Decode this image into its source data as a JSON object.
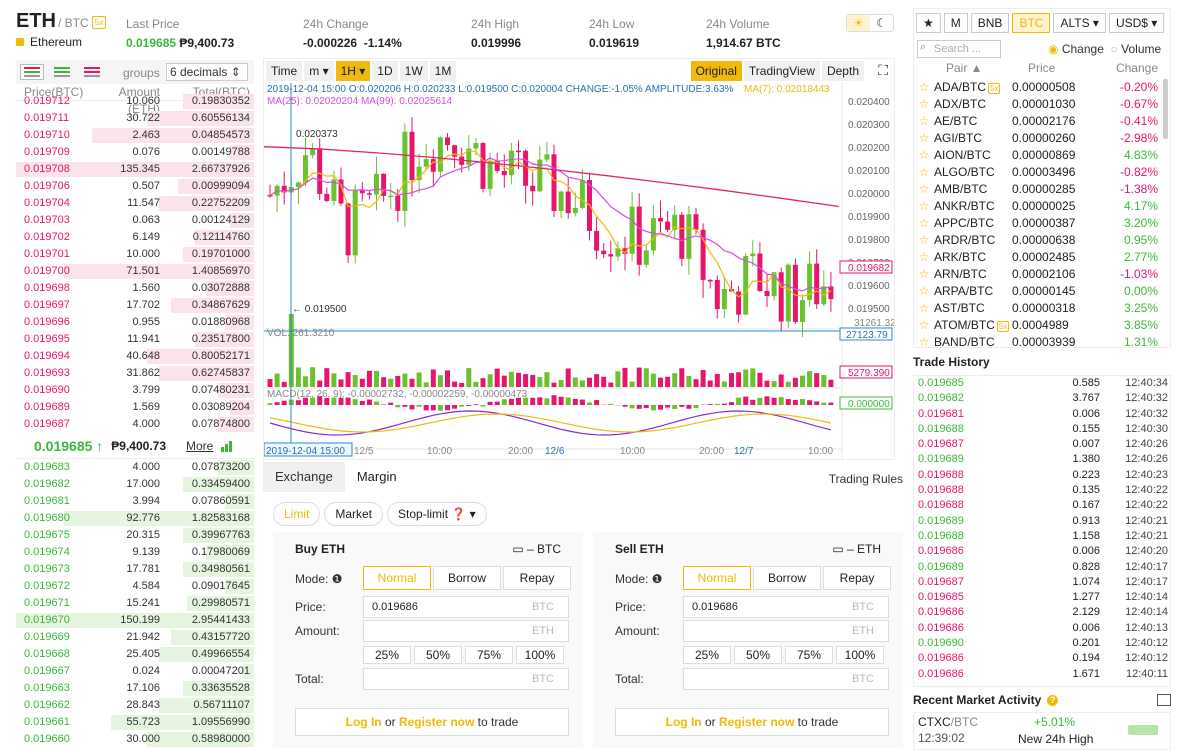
{
  "header": {
    "symbol": "ETH",
    "quote": "/ BTC",
    "leverage": "5x",
    "coin_name": "Ethereum",
    "last_price_label": "Last Price",
    "last_price": "0.019685",
    "last_price_fiat": "₱9,400.73",
    "change_label": "24h Change",
    "change_value": "-0.000226",
    "change_pct": "-1.14%",
    "high_label": "24h High",
    "high_value": "0.019996",
    "low_label": "24h Low",
    "low_value": "0.019619",
    "volume_label": "24h Volume",
    "volume_value": "1,914.67 BTC",
    "theme_light": "☀",
    "theme_dark": "☾"
  },
  "orderbook": {
    "groups_label": "groups",
    "decimals": "6 decimals ⇕",
    "col_price": "Price(BTC)",
    "col_amount": "Amount (ETH)",
    "col_total": "Total(BTC)",
    "asks": [
      {
        "p": "0.019712",
        "a": "10.060",
        "t": "0.19830352",
        "d": 0.3
      },
      {
        "p": "0.019711",
        "a": "30.722",
        "t": "0.60556134",
        "d": 0.45
      },
      {
        "p": "0.019710",
        "a": "2.463",
        "t": "0.04854573",
        "d": 0.68
      },
      {
        "p": "0.019709",
        "a": "0.076",
        "t": "0.00149788",
        "d": 0.1
      },
      {
        "p": "0.019708",
        "a": "135.345",
        "t": "2.66737926",
        "d": 1.0
      },
      {
        "p": "0.019706",
        "a": "0.507",
        "t": "0.00999094",
        "d": 0.32
      },
      {
        "p": "0.019704",
        "a": "11.547",
        "t": "0.22752209",
        "d": 0.4
      },
      {
        "p": "0.019703",
        "a": "0.063",
        "t": "0.00124129",
        "d": 0.1
      },
      {
        "p": "0.019702",
        "a": "6.149",
        "t": "0.12114760",
        "d": 0.25
      },
      {
        "p": "0.019701",
        "a": "10.000",
        "t": "0.19701000",
        "d": 0.3
      },
      {
        "p": "0.019700",
        "a": "71.501",
        "t": "1.40856970",
        "d": 0.8
      },
      {
        "p": "0.019698",
        "a": "1.560",
        "t": "0.03072888",
        "d": 0.2
      },
      {
        "p": "0.019697",
        "a": "17.702",
        "t": "0.34867629",
        "d": 0.35
      },
      {
        "p": "0.019696",
        "a": "0.955",
        "t": "0.01880968",
        "d": 0.12
      },
      {
        "p": "0.019695",
        "a": "11.941",
        "t": "0.23517800",
        "d": 0.25
      },
      {
        "p": "0.019694",
        "a": "40.648",
        "t": "0.80052171",
        "d": 0.45
      },
      {
        "p": "0.019693",
        "a": "31.862",
        "t": "0.62745837",
        "d": 0.4
      },
      {
        "p": "0.019690",
        "a": "3.799",
        "t": "0.07480231",
        "d": 0.15
      },
      {
        "p": "0.019689",
        "a": "1.569",
        "t": "0.03089204",
        "d": 0.1
      },
      {
        "p": "0.019687",
        "a": "4.000",
        "t": "0.07874800",
        "d": 0.15
      }
    ],
    "mid_price": "0.019685 ↑",
    "mid_fiat": "₱9,400.73",
    "more": "More",
    "bids": [
      {
        "p": "0.019683",
        "a": "4.000",
        "t": "0.07873200",
        "d": 0.15
      },
      {
        "p": "0.019682",
        "a": "17.000",
        "t": "0.33459400",
        "d": 0.3
      },
      {
        "p": "0.019681",
        "a": "3.994",
        "t": "0.07860591",
        "d": 0.12
      },
      {
        "p": "0.019680",
        "a": "92.776",
        "t": "1.82583168",
        "d": 0.8
      },
      {
        "p": "0.019675",
        "a": "20.315",
        "t": "0.39967763",
        "d": 0.3
      },
      {
        "p": "0.019674",
        "a": "9.139",
        "t": "0.17980069",
        "d": 0.2
      },
      {
        "p": "0.019673",
        "a": "17.781",
        "t": "0.34980561",
        "d": 0.3
      },
      {
        "p": "0.019672",
        "a": "4.584",
        "t": "0.09017645",
        "d": 0.12
      },
      {
        "p": "0.019671",
        "a": "15.241",
        "t": "0.29980571",
        "d": 0.28
      },
      {
        "p": "0.019670",
        "a": "150.199",
        "t": "2.95441433",
        "d": 1.0
      },
      {
        "p": "0.019669",
        "a": "21.942",
        "t": "0.43157720",
        "d": 0.35
      },
      {
        "p": "0.019668",
        "a": "25.405",
        "t": "0.49966554",
        "d": 0.4
      },
      {
        "p": "0.019667",
        "a": "0.024",
        "t": "0.00047201",
        "d": 0.05
      },
      {
        "p": "0.019663",
        "a": "17.106",
        "t": "0.33635528",
        "d": 0.3
      },
      {
        "p": "0.019662",
        "a": "28.843",
        "t": "0.56711107",
        "d": 0.4
      },
      {
        "p": "0.019661",
        "a": "55.723",
        "t": "1.09556990",
        "d": 0.6
      },
      {
        "p": "0.019660",
        "a": "30.000",
        "t": "0.58980000",
        "d": 0.45
      }
    ]
  },
  "chart": {
    "tools": [
      "Time",
      "m ▾",
      "1H ▾",
      "1D",
      "1W",
      "1M"
    ],
    "views": [
      "Original",
      "TradingView",
      "Depth"
    ],
    "fullscreen": "⛶",
    "ohlc": "2019-12-04 15:00  O:0.020206 H:0.020233 L:0.019500 C:0.020004 CHANGE:-1.05% AMPLITUDE:3.63%",
    "ma7": "MA(7): 0.02018443",
    "ma25": "MA(25): 0.02020204",
    "ma99": "MA(99): 0.02025614",
    "hi_mark": "0.020373",
    "lo_mark": "← 0.019500",
    "price_ticks": [
      "0.020400",
      "0.020300",
      "0.020200",
      "0.020100",
      "0.020000",
      "0.019900",
      "0.019800",
      "0.019700",
      "0.019600",
      "0.019500"
    ],
    "current_price": "0.019682",
    "vol_label": "VOL: 261.3210",
    "vol_top": "31261.32",
    "vol_tag": "27123.79",
    "vol_tag2": "5279.390",
    "macd_label": "MACD(12, 26, 9): -0.00002732, -0.00002259, -0.00000473",
    "macd_zero": "0.000000",
    "time_labels": [
      "2019-12-04 15:00",
      "12/5",
      "10:00",
      "20:00",
      "12/6",
      "10:00",
      "20:00",
      "12/7",
      "10:00"
    ]
  },
  "form": {
    "tabs": [
      "Exchange",
      "Margin"
    ],
    "trading_rules": "Trading Rules",
    "order_types": [
      "Limit",
      "Market",
      "Stop-limit"
    ],
    "buy": {
      "title": "Buy ETH",
      "wallet": "– BTC",
      "mode_label": "Mode:",
      "modes": [
        "Normal",
        "Borrow",
        "Repay"
      ],
      "price_label": "Price:",
      "price": "0.019686",
      "price_unit": "BTC",
      "amount_label": "Amount:",
      "amount_unit": "ETH",
      "pcts": [
        "25%",
        "50%",
        "75%",
        "100%"
      ],
      "total_label": "Total:",
      "total_unit": "BTC",
      "login": "Log In",
      "or": " or ",
      "register": "Register now",
      "to_trade": " to trade"
    },
    "sell": {
      "title": "Sell ETH",
      "wallet": "– ETH",
      "mode_label": "Mode:",
      "modes": [
        "Normal",
        "Borrow",
        "Repay"
      ],
      "price_label": "Price:",
      "price": "0.019686",
      "price_unit": "BTC",
      "amount_label": "Amount:",
      "amount_unit": "ETH",
      "pcts": [
        "25%",
        "50%",
        "75%",
        "100%"
      ],
      "total_label": "Total:",
      "total_unit": "BTC",
      "login": "Log In",
      "or": " or ",
      "register": "Register now",
      "to_trade": " to trade"
    }
  },
  "market": {
    "tabs": [
      "★",
      "M",
      "BNB",
      "BTC",
      "ALTS ▾",
      "USD$ ▾"
    ],
    "search_placeholder": "Search ...",
    "radio_change": "Change",
    "radio_volume": "Volume",
    "col_pair": "Pair ▲",
    "col_price": "Price",
    "col_change": "Change",
    "rows": [
      {
        "pair": "ADA/BTC",
        "lev": "5x",
        "price": "0.00000508",
        "change": "-0.20%",
        "up": false
      },
      {
        "pair": "ADX/BTC",
        "lev": "",
        "price": "0.00001030",
        "change": "-0.67%",
        "up": false
      },
      {
        "pair": "AE/BTC",
        "lev": "",
        "price": "0.00002176",
        "change": "-0.41%",
        "up": false
      },
      {
        "pair": "AGI/BTC",
        "lev": "",
        "price": "0.00000260",
        "change": "-2.98%",
        "up": false
      },
      {
        "pair": "AION/BTC",
        "lev": "",
        "price": "0.00000869",
        "change": "4.83%",
        "up": true
      },
      {
        "pair": "ALGO/BTC",
        "lev": "",
        "price": "0.00003496",
        "change": "-0.82%",
        "up": false
      },
      {
        "pair": "AMB/BTC",
        "lev": "",
        "price": "0.00000285",
        "change": "-1.38%",
        "up": false
      },
      {
        "pair": "ANKR/BTC",
        "lev": "",
        "price": "0.00000025",
        "change": "4.17%",
        "up": true
      },
      {
        "pair": "APPC/BTC",
        "lev": "",
        "price": "0.00000387",
        "change": "3.20%",
        "up": true
      },
      {
        "pair": "ARDR/BTC",
        "lev": "",
        "price": "0.00000638",
        "change": "0.95%",
        "up": true
      },
      {
        "pair": "ARK/BTC",
        "lev": "",
        "price": "0.00002485",
        "change": "2.77%",
        "up": true
      },
      {
        "pair": "ARN/BTC",
        "lev": "",
        "price": "0.00002106",
        "change": "-1.03%",
        "up": false
      },
      {
        "pair": "ARPA/BTC",
        "lev": "",
        "price": "0.00000145",
        "change": "0.00%",
        "up": true
      },
      {
        "pair": "AST/BTC",
        "lev": "",
        "price": "0.00000318",
        "change": "3.25%",
        "up": true
      },
      {
        "pair": "ATOM/BTC",
        "lev": "5x",
        "price": "0.0004989",
        "change": "3.85%",
        "up": true
      },
      {
        "pair": "BAND/BTC",
        "lev": "",
        "price": "0.00003939",
        "change": "1.31%",
        "up": true
      }
    ]
  },
  "trades": {
    "title": "Trade History",
    "rows": [
      [
        "0.019685",
        "0.585",
        "12:40:34",
        true
      ],
      [
        "0.019682",
        "3.767",
        "12:40:32",
        true
      ],
      [
        "0.019681",
        "0.006",
        "12:40:32",
        false
      ],
      [
        "0.019688",
        "0.155",
        "12:40:30",
        true
      ],
      [
        "0.019687",
        "0.007",
        "12:40:26",
        false
      ],
      [
        "0.019689",
        "1.380",
        "12:40:26",
        true
      ],
      [
        "0.019688",
        "0.223",
        "12:40:23",
        false
      ],
      [
        "0.019688",
        "0.135",
        "12:40:22",
        false
      ],
      [
        "0.019688",
        "0.167",
        "12:40:22",
        false
      ],
      [
        "0.019689",
        "0.913",
        "12:40:21",
        true
      ],
      [
        "0.019688",
        "1.158",
        "12:40:21",
        true
      ],
      [
        "0.019686",
        "0.006",
        "12:40:20",
        false
      ],
      [
        "0.019689",
        "0.828",
        "12:40:17",
        true
      ],
      [
        "0.019687",
        "1.074",
        "12:40:17",
        false
      ],
      [
        "0.019685",
        "1.277",
        "12:40:14",
        false
      ],
      [
        "0.019686",
        "2.129",
        "12:40:14",
        false
      ],
      [
        "0.019686",
        "0.006",
        "12:40:13",
        false
      ],
      [
        "0.019690",
        "0.201",
        "12:40:12",
        true
      ],
      [
        "0.019686",
        "0.194",
        "12:40:12",
        false
      ],
      [
        "0.019686",
        "1.671",
        "12:40:11",
        false
      ]
    ]
  },
  "recent": {
    "title": "Recent Market Activity",
    "pair": "CTXC",
    "quote": "/BTC",
    "time": "12:39:02",
    "change": "+5.01%",
    "event": "New 24h High"
  }
}
